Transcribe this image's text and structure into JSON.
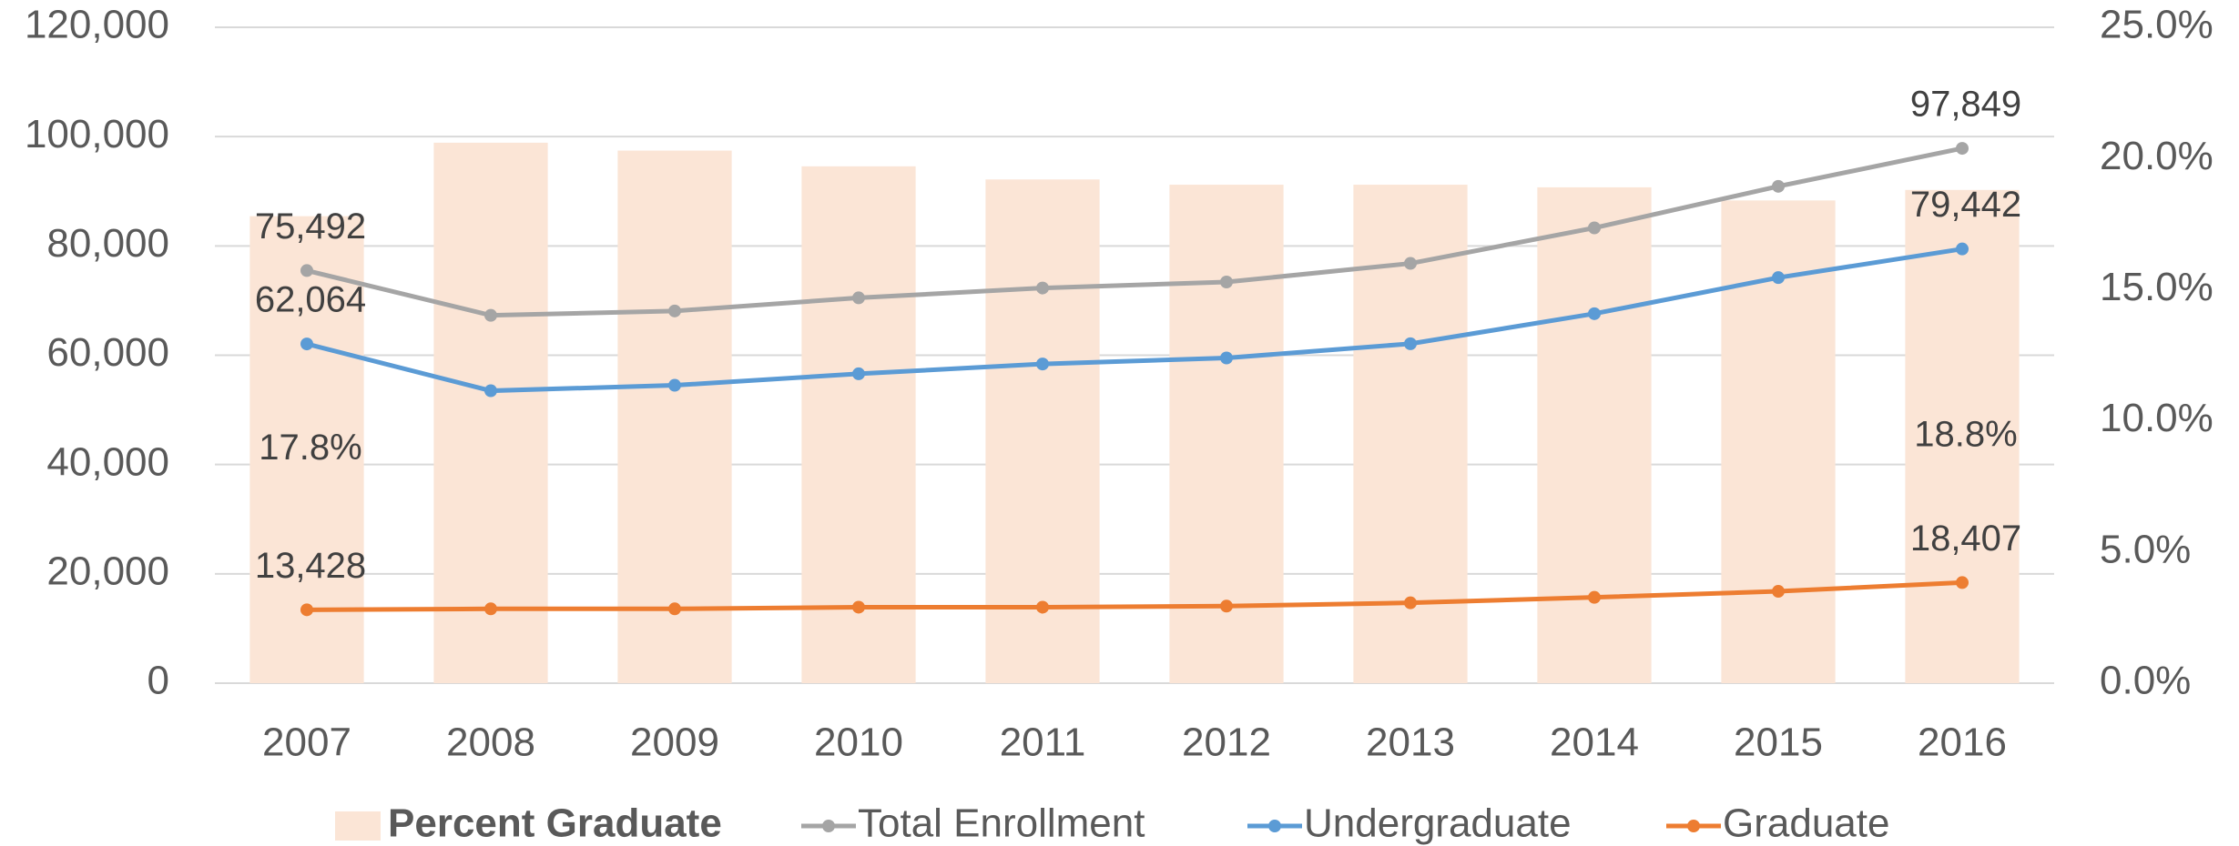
{
  "chart_data": {
    "type": "combo",
    "categories": [
      "2007",
      "2008",
      "2009",
      "2010",
      "2011",
      "2012",
      "2013",
      "2014",
      "2015",
      "2016"
    ],
    "series": [
      {
        "name": "Percent Graduate",
        "type": "bar",
        "axis": "y2",
        "color": "#fbe5d6",
        "values": [
          17.8,
          20.6,
          20.3,
          19.7,
          19.2,
          19.0,
          19.0,
          18.9,
          18.4,
          18.8
        ],
        "value_labels": [
          "17.8%",
          null,
          null,
          null,
          null,
          null,
          null,
          null,
          null,
          "18.8%"
        ]
      },
      {
        "name": "Total Enrollment",
        "type": "line",
        "color": "#a5a5a5",
        "values": [
          75492,
          67300,
          68100,
          70500,
          72300,
          73400,
          76800,
          83300,
          90900,
          97849
        ],
        "value_labels": [
          "75,492",
          null,
          null,
          null,
          null,
          null,
          null,
          null,
          null,
          "97,849"
        ]
      },
      {
        "name": "Undergraduate",
        "type": "line",
        "color": "#5b9bd5",
        "values": [
          62064,
          53500,
          54500,
          56600,
          58400,
          59500,
          62100,
          67600,
          74200,
          79442
        ],
        "value_labels": [
          "62,064",
          null,
          null,
          null,
          null,
          null,
          null,
          null,
          null,
          "79,442"
        ]
      },
      {
        "name": "Graduate",
        "type": "line",
        "color": "#ed7d31",
        "values": [
          13428,
          13600,
          13600,
          13900,
          13900,
          14100,
          14700,
          15700,
          16800,
          18407
        ],
        "value_labels": [
          "13,428",
          null,
          null,
          null,
          null,
          null,
          null,
          null,
          null,
          "18,407"
        ]
      }
    ],
    "ylim": [
      0,
      120000
    ],
    "yticks": [
      0,
      {
        "value": 20000,
        "label": "20,000"
      },
      {
        "value": 40000,
        "label": "40,000"
      },
      {
        "value": 60000,
        "label": "60,000"
      },
      {
        "value": 80000,
        "label": "80,000"
      },
      {
        "value": 100000,
        "label": "100,000"
      },
      {
        "value": 120000,
        "label": "120,000"
      }
    ],
    "y2lim": [
      0,
      25
    ],
    "y2ticks": [
      {
        "value": 0,
        "label": "0.0%"
      },
      {
        "value": 5,
        "label": "5.0%"
      },
      {
        "value": 10,
        "label": "10.0%"
      },
      {
        "value": 15,
        "label": "15.0%"
      },
      {
        "value": 20,
        "label": "20.0%"
      },
      {
        "value": 25,
        "label": "25.0%"
      }
    ],
    "grid": true,
    "legend": "bottom"
  }
}
